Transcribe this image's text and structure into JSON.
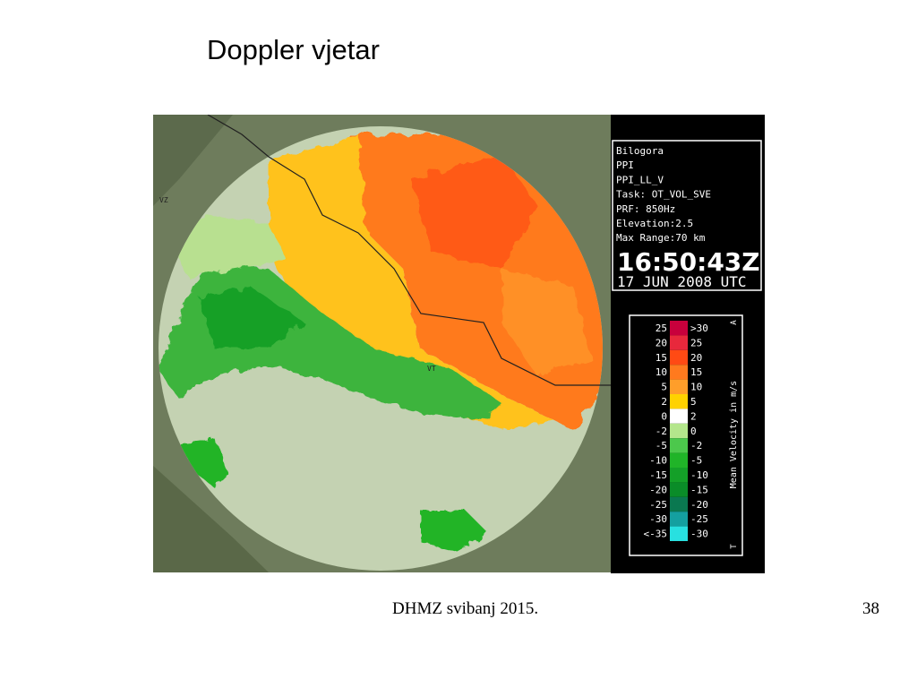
{
  "header": {
    "title": "Doppler vjetar"
  },
  "radar": {
    "map_labels": [
      "VZ",
      "VT"
    ],
    "info": [
      "Bilogora",
      "PPI",
      "PPI_LL_V",
      "Task: OT_VOL_SVE",
      "PRF: 850Hz",
      "Elevation:2.5",
      "Max Range:70 km"
    ],
    "time": "16:50:43Z",
    "date": "17 JUN 2008 UTC",
    "legend": {
      "title": "Mean Velocity in m/s",
      "top_mark": "A",
      "bottom_mark": "T",
      "rows": [
        {
          "low": "25",
          "high": ">30",
          "color": "#c8003c"
        },
        {
          "low": "20",
          "high": "25",
          "color": "#e8283c"
        },
        {
          "low": "15",
          "high": "20",
          "color": "#ff4a14"
        },
        {
          "low": "10",
          "high": "15",
          "color": "#ff7a1e"
        },
        {
          "low": "5",
          "high": "10",
          "color": "#ff9e2a"
        },
        {
          "low": "2",
          "high": "5",
          "color": "#ffd200"
        },
        {
          "low": "0",
          "high": "2",
          "color": "#ffffff"
        },
        {
          "low": "-2",
          "high": "0",
          "color": "#b4e68c"
        },
        {
          "low": "-5",
          "high": "-2",
          "color": "#4cc84c"
        },
        {
          "low": "-10",
          "high": "-5",
          "color": "#20b428"
        },
        {
          "low": "-15",
          "high": "-10",
          "color": "#14a028"
        },
        {
          "low": "-20",
          "high": "-15",
          "color": "#0a8c28"
        },
        {
          "low": "-25",
          "high": "-20",
          "color": "#0a7850"
        },
        {
          "low": "-30",
          "high": "-25",
          "color": "#14a0a0"
        },
        {
          "low": "<-35",
          "high": "-30",
          "color": "#28e0e0"
        }
      ]
    }
  },
  "footer": {
    "text": "DHMZ svibanj 2015.",
    "page": "38"
  }
}
